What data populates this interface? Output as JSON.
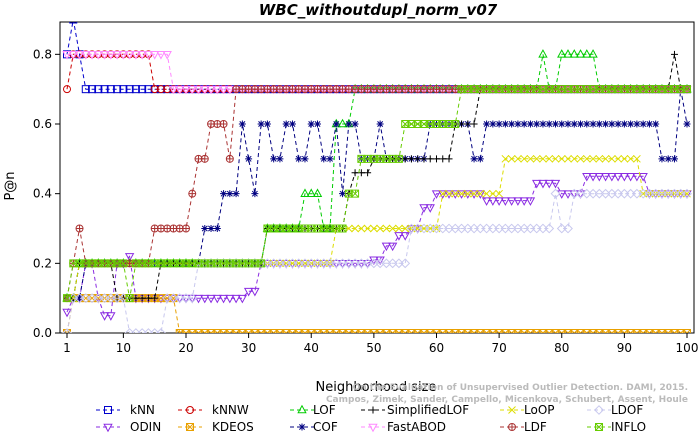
{
  "chart_data": {
    "type": "line",
    "title": "WBC_withoutdupl_norm_v07",
    "xlabel": "Neighborhood size",
    "ylabel": "P@n",
    "xlim": [
      1,
      100
    ],
    "ylim": [
      0,
      0.9
    ],
    "x_ticks": [
      1,
      10,
      20,
      30,
      40,
      50,
      60,
      70,
      80,
      90,
      100
    ],
    "y_ticks": [
      0.0,
      0.2,
      0.4,
      0.6,
      0.8
    ],
    "y_tick_labels": [
      "0.0",
      "0.2",
      "0.4",
      "0.6",
      "0.8"
    ],
    "watermark": [
      "Campos, Zimek, Sander, Campello, Micenkova, Schubert, Assent, Houle",
      "On the Evaluation of Unsupervised Outlier Detection. DAMI, 2015."
    ],
    "series": [
      {
        "name": "kNN",
        "color": "#0000cc",
        "marker": "square",
        "points": [
          [
            1,
            0.8
          ],
          [
            2,
            0.9
          ],
          [
            3,
            0.8
          ],
          [
            4,
            0.7
          ],
          [
            100,
            0.7
          ]
        ]
      },
      {
        "name": "ODIN",
        "color": "#8a2be2",
        "marker": "triangle-down",
        "points": [
          [
            1,
            0.06
          ],
          [
            2,
            0.1
          ],
          [
            4,
            0.2
          ],
          [
            6,
            0.1
          ],
          [
            7,
            0.05
          ],
          [
            9,
            0.2
          ],
          [
            11,
            0.22
          ],
          [
            12,
            0.1
          ],
          [
            20,
            0.1
          ],
          [
            24,
            0.1
          ],
          [
            28,
            0.1
          ],
          [
            30,
            0.12
          ],
          [
            32,
            0.2
          ],
          [
            44,
            0.2
          ],
          [
            48,
            0.2
          ],
          [
            50,
            0.21
          ],
          [
            52,
            0.25
          ],
          [
            54,
            0.28
          ],
          [
            56,
            0.3
          ],
          [
            58,
            0.36
          ],
          [
            60,
            0.4
          ],
          [
            66,
            0.4
          ],
          [
            68,
            0.38
          ],
          [
            76,
            0.43
          ],
          [
            80,
            0.4
          ],
          [
            84,
            0.45
          ],
          [
            92,
            0.45
          ],
          [
            94,
            0.4
          ],
          [
            100,
            0.4
          ]
        ]
      },
      {
        "name": "kNNW",
        "color": "#cc0000",
        "marker": "circle",
        "points": [
          [
            1,
            0.7
          ],
          [
            2,
            0.8
          ],
          [
            14,
            0.8
          ],
          [
            15,
            0.7
          ],
          [
            100,
            0.7
          ]
        ]
      },
      {
        "name": "KDEOS",
        "color": "#e8a000",
        "marker": "square-x",
        "points": [
          [
            1,
            0.0
          ],
          [
            2,
            0.1
          ],
          [
            18,
            0.1
          ],
          [
            19,
            0.0
          ],
          [
            100,
            0.0
          ]
        ]
      },
      {
        "name": "LOF",
        "color": "#00cc00",
        "marker": "triangle-up",
        "points": [
          [
            1,
            0.1
          ],
          [
            2,
            0.1
          ],
          [
            3,
            0.2
          ],
          [
            32,
            0.2
          ],
          [
            33,
            0.3
          ],
          [
            38,
            0.3
          ],
          [
            39,
            0.4
          ],
          [
            41,
            0.4
          ],
          [
            42,
            0.3
          ],
          [
            44,
            0.6
          ],
          [
            46,
            0.6
          ],
          [
            47,
            0.7
          ],
          [
            76,
            0.7
          ],
          [
            77,
            0.8
          ],
          [
            78,
            0.7
          ],
          [
            80,
            0.8
          ],
          [
            85,
            0.8
          ],
          [
            86,
            0.7
          ],
          [
            100,
            0.7
          ]
        ]
      },
      {
        "name": "COF",
        "color": "#000080",
        "marker": "asterisk",
        "points": [
          [
            1,
            0.1
          ],
          [
            3,
            0.1
          ],
          [
            4,
            0.2
          ],
          [
            22,
            0.2
          ],
          [
            23,
            0.3
          ],
          [
            25,
            0.3
          ],
          [
            26,
            0.4
          ],
          [
            28,
            0.4
          ],
          [
            29,
            0.6
          ],
          [
            30,
            0.5
          ],
          [
            31,
            0.4
          ],
          [
            32,
            0.6
          ],
          [
            34,
            0.5
          ],
          [
            36,
            0.6
          ],
          [
            38,
            0.5
          ],
          [
            40,
            0.6
          ],
          [
            42,
            0.5
          ],
          [
            44,
            0.6
          ],
          [
            45,
            0.4
          ],
          [
            46,
            0.6
          ],
          [
            48,
            0.5
          ],
          [
            51,
            0.6
          ],
          [
            52,
            0.5
          ],
          [
            58,
            0.5
          ],
          [
            59,
            0.6
          ],
          [
            64,
            0.6
          ],
          [
            66,
            0.5
          ],
          [
            68,
            0.6
          ],
          [
            95,
            0.6
          ],
          [
            96,
            0.5
          ],
          [
            98,
            0.5
          ],
          [
            99,
            0.7
          ],
          [
            100,
            0.6
          ]
        ]
      },
      {
        "name": "SimplifiedLOF",
        "color": "#000000",
        "marker": "plus",
        "points": [
          [
            1,
            0.1
          ],
          [
            2,
            0.1
          ],
          [
            3,
            0.2
          ],
          [
            8,
            0.2
          ],
          [
            9,
            0.1
          ],
          [
            15,
            0.1
          ],
          [
            16,
            0.2
          ],
          [
            32,
            0.2
          ],
          [
            33,
            0.3
          ],
          [
            45,
            0.3
          ],
          [
            46,
            0.4
          ],
          [
            47,
            0.46
          ],
          [
            50,
            0.5
          ],
          [
            62,
            0.5
          ],
          [
            63,
            0.6
          ],
          [
            66,
            0.6
          ],
          [
            67,
            0.7
          ],
          [
            97,
            0.7
          ],
          [
            98,
            0.8
          ],
          [
            99,
            0.7
          ],
          [
            100,
            0.7
          ]
        ]
      },
      {
        "name": "FastABOD",
        "color": "#ff88ff",
        "marker": "triangle-down",
        "points": [
          [
            1,
            0.8
          ],
          [
            14,
            0.8
          ],
          [
            15,
            0.8
          ],
          [
            17,
            0.8
          ],
          [
            18,
            0.7
          ],
          [
            100,
            0.7
          ]
        ]
      },
      {
        "name": "LoOP",
        "color": "#dddd00",
        "marker": "x",
        "points": [
          [
            1,
            0.1
          ],
          [
            2,
            0.1
          ],
          [
            3,
            0.2
          ],
          [
            22,
            0.2
          ],
          [
            30,
            0.2
          ],
          [
            32,
            0.2
          ],
          [
            34,
            0.2
          ],
          [
            36,
            0.2
          ],
          [
            40,
            0.2
          ],
          [
            44,
            0.3
          ],
          [
            60,
            0.3
          ],
          [
            61,
            0.4
          ],
          [
            70,
            0.4
          ],
          [
            71,
            0.5
          ],
          [
            92,
            0.5
          ],
          [
            93,
            0.4
          ],
          [
            100,
            0.4
          ]
        ]
      },
      {
        "name": "LDF",
        "color": "#aa3333",
        "marker": "circle-plus",
        "points": [
          [
            1,
            0.1
          ],
          [
            2,
            0.2
          ],
          [
            3,
            0.3
          ],
          [
            4,
            0.2
          ],
          [
            14,
            0.2
          ],
          [
            15,
            0.3
          ],
          [
            20,
            0.3
          ],
          [
            21,
            0.4
          ],
          [
            22,
            0.5
          ],
          [
            24,
            0.6
          ],
          [
            26,
            0.6
          ],
          [
            27,
            0.5
          ],
          [
            28,
            0.7
          ],
          [
            100,
            0.7
          ]
        ]
      },
      {
        "name": "LDOF",
        "color": "#c8c8ee",
        "marker": "diamond",
        "points": [
          [
            1,
            0.0
          ],
          [
            2,
            0.1
          ],
          [
            10,
            0.1
          ],
          [
            11,
            0.0
          ],
          [
            16,
            0.0
          ],
          [
            17,
            0.1
          ],
          [
            20,
            0.1
          ],
          [
            22,
            0.2
          ],
          [
            28,
            0.2
          ],
          [
            44,
            0.2
          ],
          [
            46,
            0.2
          ],
          [
            56,
            0.3
          ],
          [
            62,
            0.3
          ],
          [
            72,
            0.3
          ],
          [
            78,
            0.3
          ],
          [
            79,
            0.4
          ],
          [
            80,
            0.3
          ],
          [
            82,
            0.4
          ],
          [
            100,
            0.4
          ]
        ]
      },
      {
        "name": "INFLO",
        "color": "#66cc00",
        "marker": "square-x",
        "points": [
          [
            1,
            0.1
          ],
          [
            2,
            0.2
          ],
          [
            3,
            0.2
          ],
          [
            10,
            0.2
          ],
          [
            11,
            0.1
          ],
          [
            12,
            0.2
          ],
          [
            32,
            0.2
          ],
          [
            33,
            0.3
          ],
          [
            45,
            0.3
          ],
          [
            46,
            0.4
          ],
          [
            48,
            0.5
          ],
          [
            54,
            0.5
          ],
          [
            55,
            0.6
          ],
          [
            62,
            0.6
          ],
          [
            63,
            0.6
          ],
          [
            64,
            0.7
          ],
          [
            100,
            0.7
          ]
        ]
      }
    ],
    "legend_rows": [
      [
        "kNN",
        "kNNW",
        "LOF",
        "SimplifiedLOF",
        "LoOP",
        "LDOF"
      ],
      [
        "ODIN",
        "KDEOS",
        "COF",
        "FastABOD",
        "LDF",
        "INFLO"
      ]
    ]
  }
}
